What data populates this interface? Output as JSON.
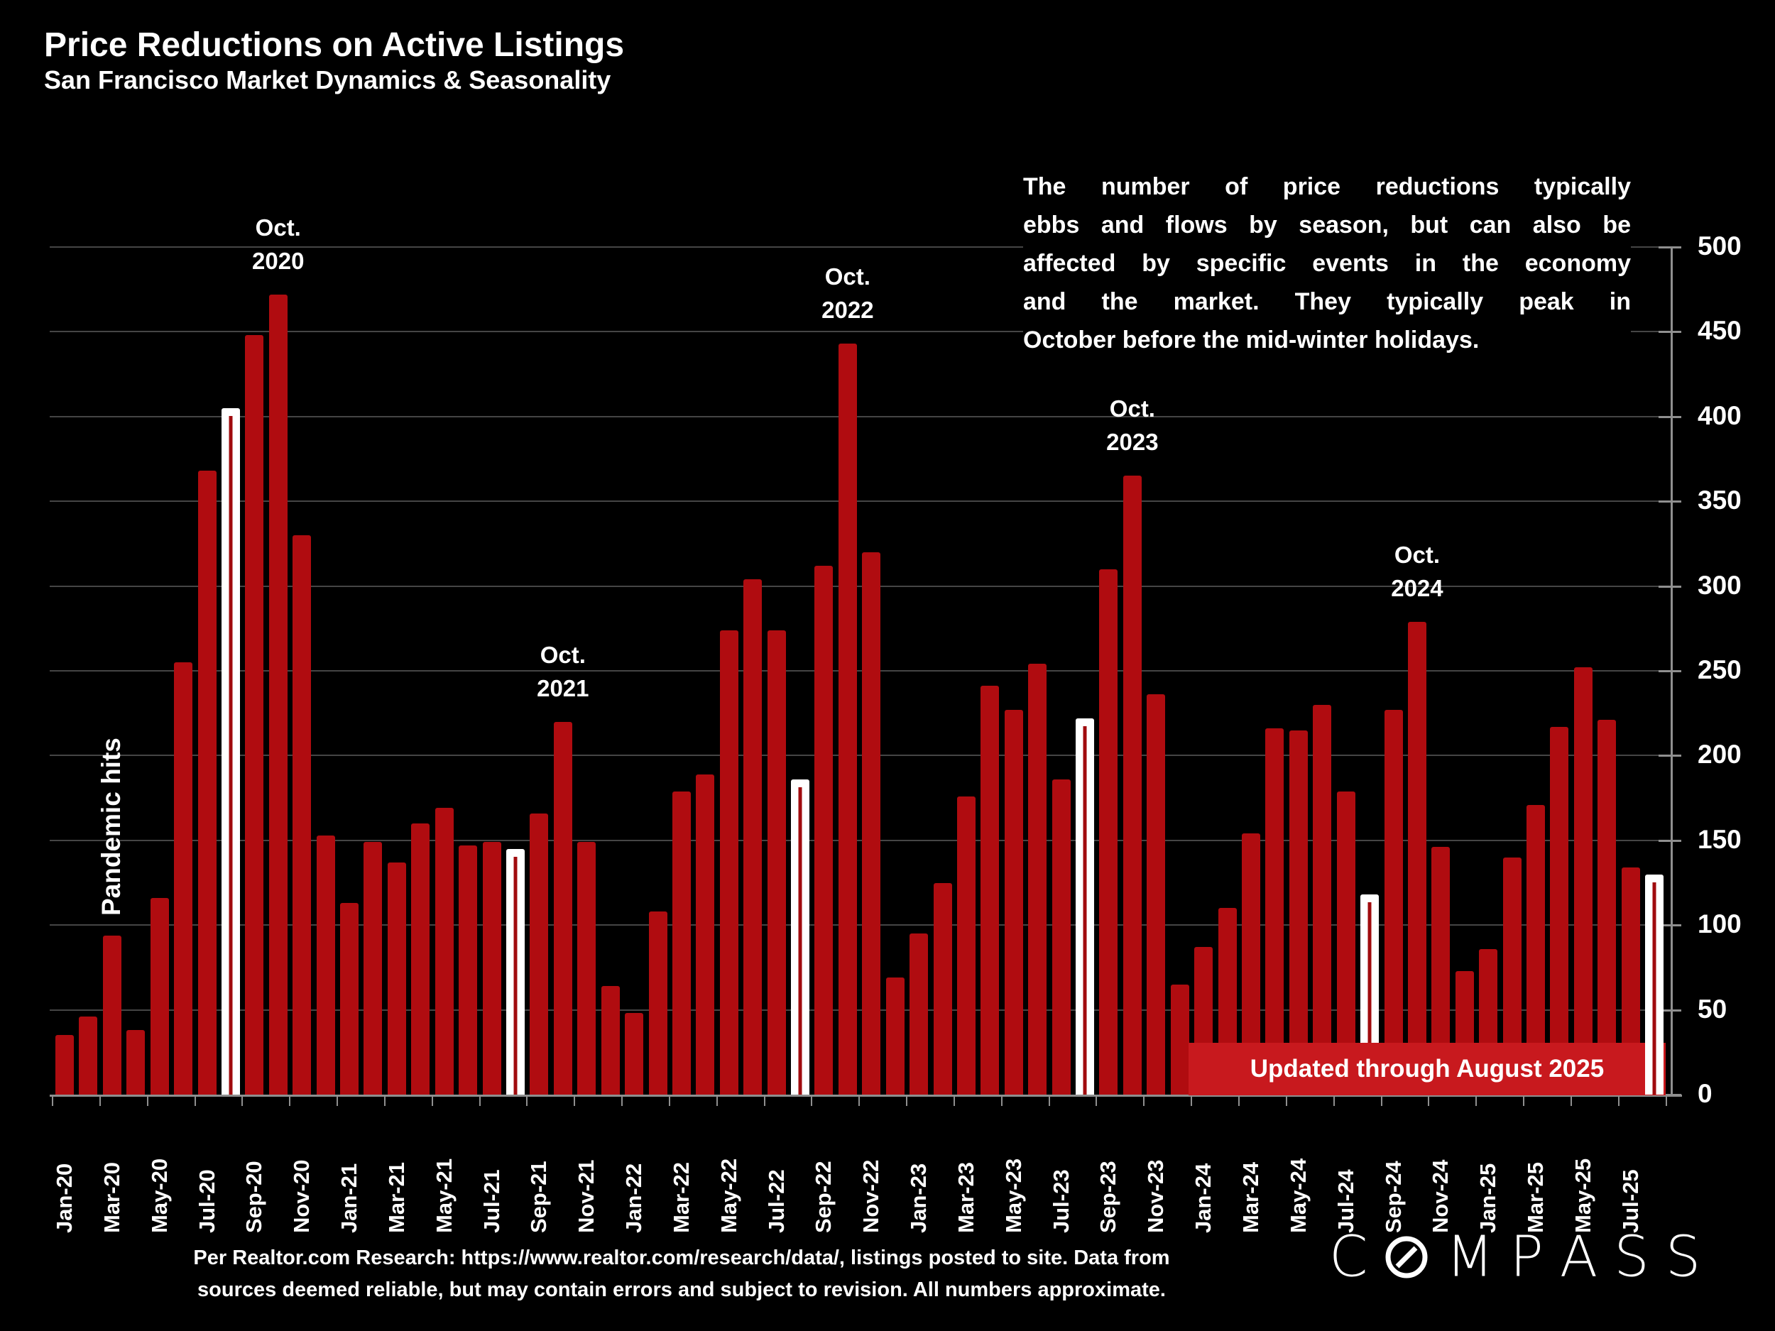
{
  "title": "Price Reductions on Active Listings",
  "subtitle": "San Francisco Market Dynamics & Seasonality",
  "commentary": {
    "lines": [
      "The number of price reductions typically",
      "ebbs and flows by season, but can also be",
      "affected by specific events in the economy",
      "and the market. They typically peak in",
      "October before the mid-winter holidays."
    ]
  },
  "annotations": {
    "pandemic_label": "Pandemic hits",
    "october_labels": [
      {
        "line1": "Oct.",
        "line2": "2020",
        "month": "Oct-20"
      },
      {
        "line1": "Oct.",
        "line2": "2021",
        "month": "Oct-21"
      },
      {
        "line1": "Oct.",
        "line2": "2022",
        "month": "Oct-22"
      },
      {
        "line1": "Oct.",
        "line2": "2023",
        "month": "Oct-23"
      },
      {
        "line1": "Oct.",
        "line2": "2024",
        "month": "Oct-24"
      }
    ]
  },
  "banner": {
    "text": "Updated through August 2025"
  },
  "footer": {
    "lines": [
      "Per Realtor.com Research:  https://www.realtor.com/research/data/, listings posted to site. Data from",
      "sources deemed reliable, but may contain errors and subject to revision. All numbers approximate."
    ]
  },
  "logo": {
    "text": "COMPASS",
    "slashed_o_index": 1
  },
  "colors": {
    "background": "#000000",
    "bar": "#B00C10",
    "bar_highlight_fill": "#FFFFFF",
    "bar_highlight_line": "#A00B0E",
    "banner": "#C8191E",
    "banner_text": "#FFFFFF",
    "grid": "#454545",
    "axis": "#8F8F8F",
    "text": "#FFFFFF"
  },
  "chart_data": {
    "type": "bar",
    "title": "Price Reductions on Active Listings",
    "xlabel": "",
    "ylabel": "",
    "ylim": [
      0,
      500
    ],
    "grid": true,
    "y_axis_side": "right",
    "yticks": [
      0,
      50,
      100,
      150,
      200,
      250,
      300,
      350,
      400,
      450,
      500
    ],
    "categories": [
      "Jan-20",
      "Feb-20",
      "Mar-20",
      "Apr-20",
      "May-20",
      "Jun-20",
      "Jul-20",
      "Aug-20",
      "Sep-20",
      "Oct-20",
      "Nov-20",
      "Dec-20",
      "Jan-21",
      "Feb-21",
      "Mar-21",
      "Apr-21",
      "May-21",
      "Jun-21",
      "Jul-21",
      "Aug-21",
      "Sep-21",
      "Oct-21",
      "Nov-21",
      "Dec-21",
      "Jan-22",
      "Feb-22",
      "Mar-22",
      "Apr-22",
      "May-22",
      "Jun-22",
      "Jul-22",
      "Aug-22",
      "Sep-22",
      "Oct-22",
      "Nov-22",
      "Dec-22",
      "Jan-23",
      "Feb-23",
      "Mar-23",
      "Apr-23",
      "May-23",
      "Jun-23",
      "Jul-23",
      "Aug-23",
      "Sep-23",
      "Oct-23",
      "Nov-23",
      "Dec-23",
      "Jan-24",
      "Feb-24",
      "Mar-24",
      "Apr-24",
      "May-24",
      "Jun-24",
      "Jul-24",
      "Aug-24",
      "Sep-24",
      "Oct-24",
      "Nov-24",
      "Dec-24",
      "Jan-25",
      "Feb-25",
      "Mar-25",
      "Apr-25",
      "May-25",
      "Jun-25",
      "Jul-25",
      "Aug-25"
    ],
    "values": [
      35,
      46,
      94,
      38,
      116,
      255,
      368,
      405,
      448,
      472,
      330,
      153,
      113,
      149,
      137,
      160,
      169,
      147,
      149,
      145,
      166,
      220,
      149,
      64,
      48,
      108,
      179,
      189,
      274,
      304,
      274,
      186,
      312,
      443,
      320,
      69,
      95,
      125,
      176,
      241,
      227,
      254,
      186,
      222,
      310,
      365,
      236,
      65,
      87,
      110,
      154,
      216,
      215,
      230,
      179,
      118,
      227,
      279,
      146,
      73,
      86,
      140,
      171,
      217,
      252,
      221,
      134,
      130
    ],
    "highlight_months": [
      "Aug-20",
      "Aug-21",
      "Aug-22",
      "Aug-23",
      "Aug-24",
      "Aug-25"
    ],
    "x_tick_labels": [
      "Jan-20",
      "Mar-20",
      "May-20",
      "Jul-20",
      "Sep-20",
      "Nov-20",
      "Jan-21",
      "Mar-21",
      "May-21",
      "Jul-21",
      "Sep-21",
      "Nov-21",
      "Jan-22",
      "Mar-22",
      "May-22",
      "Jul-22",
      "Sep-22",
      "Nov-22",
      "Jan-23",
      "Mar-23",
      "May-23",
      "Jul-23",
      "Sep-23",
      "Nov-23",
      "Jan-24",
      "Mar-24",
      "May-24",
      "Jul-24",
      "Sep-24",
      "Nov-24",
      "Jan-25",
      "Mar-25",
      "May-25",
      "Jul-25"
    ]
  }
}
